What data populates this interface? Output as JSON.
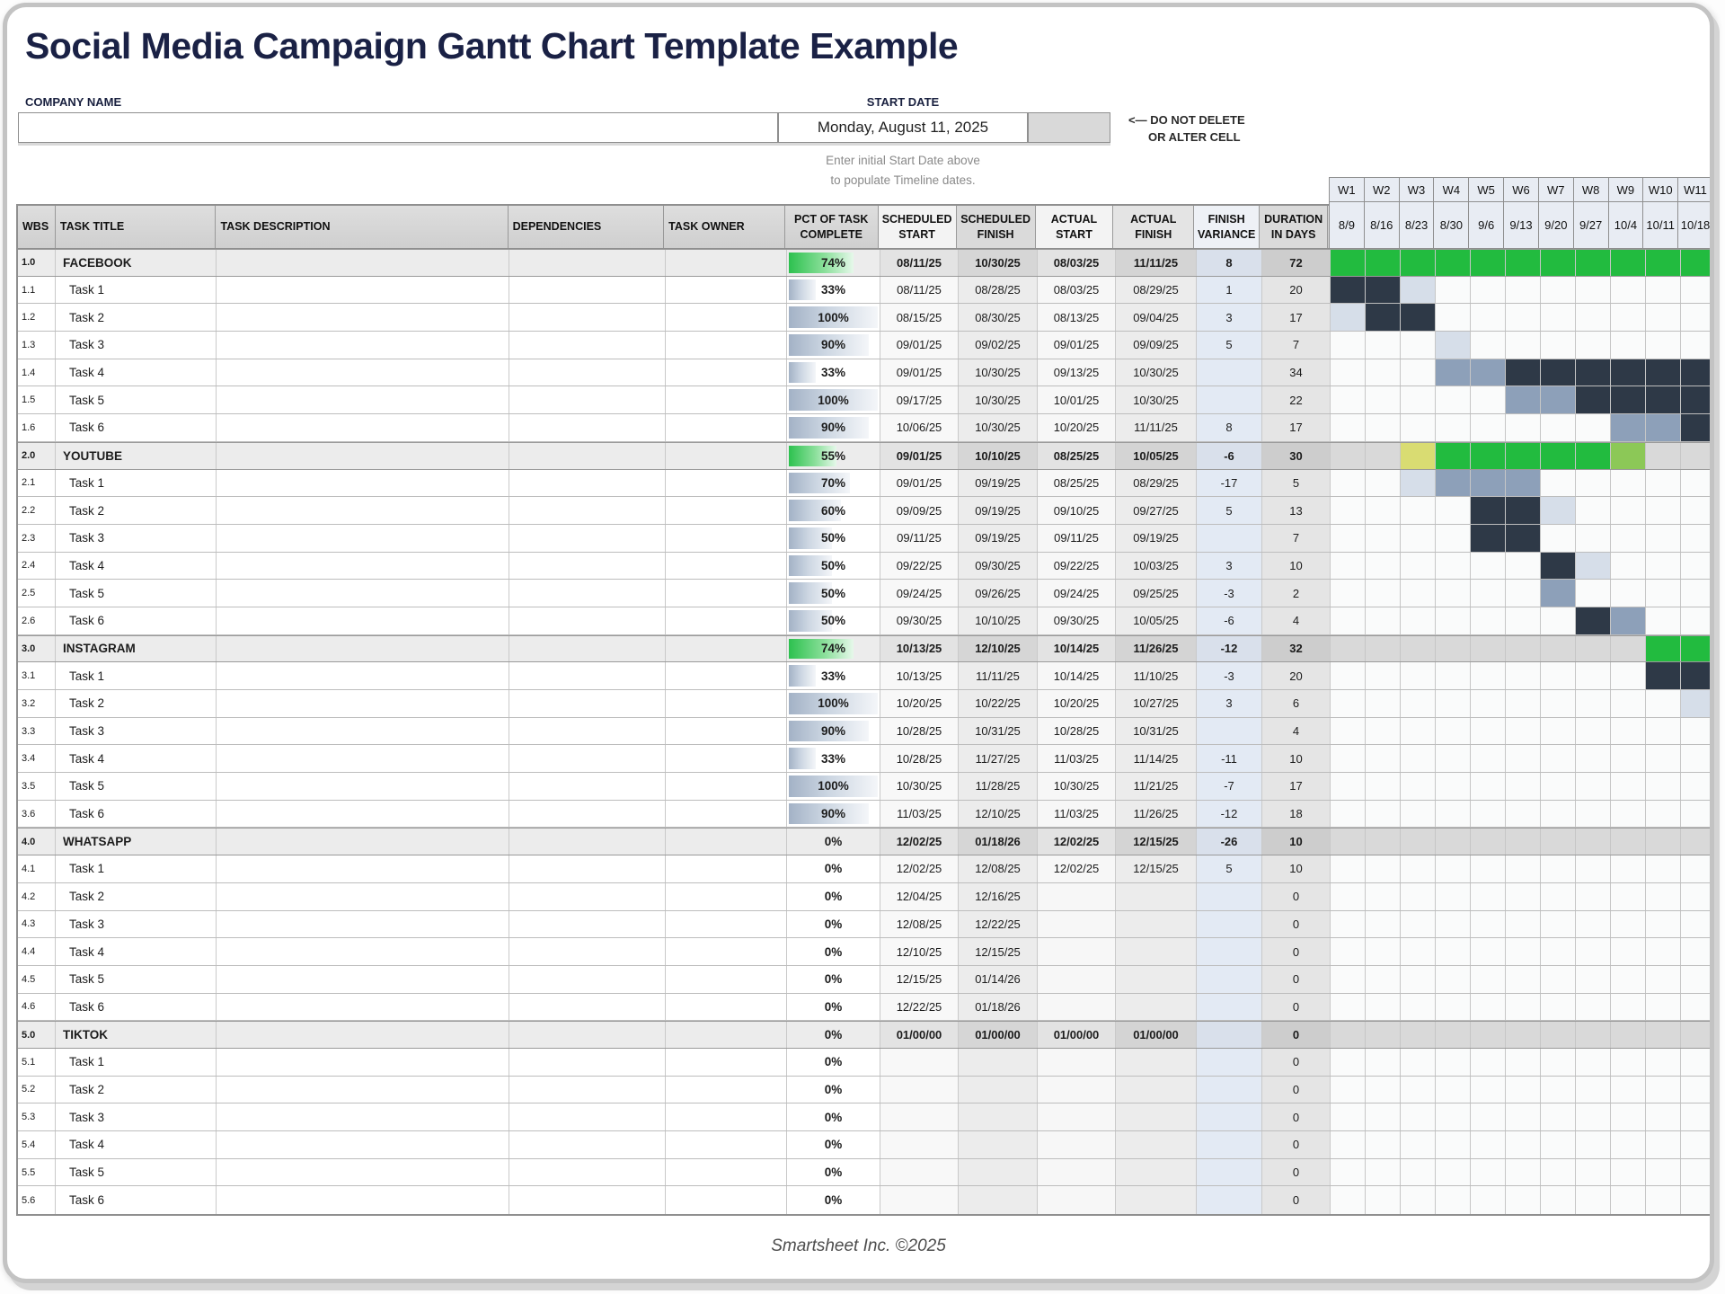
{
  "page_title": "Social Media Campaign Gantt Chart Template Example",
  "form": {
    "company_label": "COMPANY NAME",
    "company_value": "",
    "start_date_label": "START DATE",
    "start_date_value": "Monday, August 11, 2025",
    "warning_line1": "<— DO NOT DELETE",
    "warning_line2": "OR ALTER CELL",
    "note_line1": "Enter initial Start Date above",
    "note_line2": "to populate Timeline dates."
  },
  "footer": {
    "text": "Smartsheet Inc. ©2025"
  },
  "colors": {
    "accent_navy": "#1a2145",
    "gantt_green": "#22bb3f",
    "gantt_light_green": "#8cc857",
    "gantt_yellow": "#d9dc72",
    "gantt_dark_navy": "#2e3947",
    "gantt_medium_slate": "#8da0b9",
    "gantt_pale_blue": "#d6dee9",
    "gantt_section_grey": "#d9d9d9"
  },
  "chart_data": {
    "type": "table",
    "title": "Social Media Campaign Gantt Chart Template Example",
    "columns": [
      "WBS",
      "TASK TITLE",
      "TASK DESCRIPTION",
      "DEPENDENCIES",
      "TASK OWNER",
      "PCT OF TASK COMPLETE",
      "SCHEDULED START",
      "SCHEDULED FINISH",
      "ACTUAL START",
      "ACTUAL FINISH",
      "FINISH VARIANCE",
      "DURATION IN DAYS"
    ],
    "weeks": [
      {
        "label": "W1",
        "date": "8/9"
      },
      {
        "label": "W2",
        "date": "8/16"
      },
      {
        "label": "W3",
        "date": "8/23"
      },
      {
        "label": "W4",
        "date": "8/30"
      },
      {
        "label": "W5",
        "date": "9/6"
      },
      {
        "label": "W6",
        "date": "9/13"
      },
      {
        "label": "W7",
        "date": "9/20"
      },
      {
        "label": "W8",
        "date": "9/27"
      },
      {
        "label": "W9",
        "date": "10/4"
      },
      {
        "label": "W10",
        "date": "10/11"
      },
      {
        "label": "W11",
        "date": "10/18"
      }
    ],
    "gantt_legend": {
      "G": "green bar",
      "LG": "light green bar",
      "Y": "yellow bar",
      "D": "dark navy bar",
      "M": "medium slate bar",
      "P": "pale blue bar",
      "X": "grey section fill",
      "": "empty"
    },
    "rows": [
      {
        "wbs": "1.0",
        "title": "FACEBOOK",
        "section": true,
        "pct": 74,
        "pct_label": "74%",
        "ss": "08/11/25",
        "sf": "10/30/25",
        "as": "08/03/25",
        "af": "11/11/25",
        "fv": "8",
        "dur": "72",
        "gantt": [
          "G",
          "G",
          "G",
          "G",
          "G",
          "G",
          "G",
          "G",
          "G",
          "G",
          "G"
        ]
      },
      {
        "wbs": "1.1",
        "title": "Task 1",
        "section": false,
        "pct": 33,
        "pct_label": "33%",
        "ss": "08/11/25",
        "sf": "08/28/25",
        "as": "08/03/25",
        "af": "08/29/25",
        "fv": "1",
        "dur": "20",
        "gantt": [
          "D",
          "D",
          "P",
          "",
          "",
          "",
          "",
          "",
          "",
          "",
          ""
        ]
      },
      {
        "wbs": "1.2",
        "title": "Task 2",
        "section": false,
        "pct": 100,
        "pct_label": "100%",
        "ss": "08/15/25",
        "sf": "08/30/25",
        "as": "08/13/25",
        "af": "09/04/25",
        "fv": "3",
        "dur": "17",
        "gantt": [
          "P",
          "D",
          "D",
          "",
          "",
          "",
          "",
          "",
          "",
          "",
          ""
        ]
      },
      {
        "wbs": "1.3",
        "title": "Task 3",
        "section": false,
        "pct": 90,
        "pct_label": "90%",
        "ss": "09/01/25",
        "sf": "09/02/25",
        "as": "09/01/25",
        "af": "09/09/25",
        "fv": "5",
        "dur": "7",
        "gantt": [
          "",
          "",
          "",
          "P",
          "",
          "",
          "",
          "",
          "",
          "",
          ""
        ]
      },
      {
        "wbs": "1.4",
        "title": "Task 4",
        "section": false,
        "pct": 33,
        "pct_label": "33%",
        "ss": "09/01/25",
        "sf": "10/30/25",
        "as": "09/13/25",
        "af": "10/30/25",
        "fv": "",
        "dur": "34",
        "gantt": [
          "",
          "",
          "",
          "M",
          "M",
          "D",
          "D",
          "D",
          "D",
          "D",
          "D"
        ]
      },
      {
        "wbs": "1.5",
        "title": "Task 5",
        "section": false,
        "pct": 100,
        "pct_label": "100%",
        "ss": "09/17/25",
        "sf": "10/30/25",
        "as": "10/01/25",
        "af": "10/30/25",
        "fv": "",
        "dur": "22",
        "gantt": [
          "",
          "",
          "",
          "",
          "",
          "M",
          "M",
          "D",
          "D",
          "D",
          "D"
        ]
      },
      {
        "wbs": "1.6",
        "title": "Task 6",
        "section": false,
        "pct": 90,
        "pct_label": "90%",
        "ss": "10/06/25",
        "sf": "10/30/25",
        "as": "10/20/25",
        "af": "11/11/25",
        "fv": "8",
        "dur": "17",
        "gantt": [
          "",
          "",
          "",
          "",
          "",
          "",
          "",
          "",
          "M",
          "M",
          "D"
        ]
      },
      {
        "wbs": "2.0",
        "title": "YOUTUBE",
        "section": true,
        "pct": 55,
        "pct_label": "55%",
        "ss": "09/01/25",
        "sf": "10/10/25",
        "as": "08/25/25",
        "af": "10/05/25",
        "fv": "-6",
        "dur": "30",
        "gantt": [
          "X",
          "X",
          "Y",
          "G",
          "G",
          "G",
          "G",
          "G",
          "LG",
          "X",
          "X"
        ]
      },
      {
        "wbs": "2.1",
        "title": "Task 1",
        "section": false,
        "pct": 70,
        "pct_label": "70%",
        "ss": "09/01/25",
        "sf": "09/19/25",
        "as": "08/25/25",
        "af": "08/29/25",
        "fv": "-17",
        "dur": "5",
        "gantt": [
          "",
          "",
          "P",
          "M",
          "M",
          "M",
          "",
          "",
          "",
          "",
          ""
        ]
      },
      {
        "wbs": "2.2",
        "title": "Task 2",
        "section": false,
        "pct": 60,
        "pct_label": "60%",
        "ss": "09/09/25",
        "sf": "09/19/25",
        "as": "09/10/25",
        "af": "09/27/25",
        "fv": "5",
        "dur": "13",
        "gantt": [
          "",
          "",
          "",
          "",
          "D",
          "D",
          "P",
          "",
          "",
          "",
          ""
        ]
      },
      {
        "wbs": "2.3",
        "title": "Task 3",
        "section": false,
        "pct": 50,
        "pct_label": "50%",
        "ss": "09/11/25",
        "sf": "09/19/25",
        "as": "09/11/25",
        "af": "09/19/25",
        "fv": "",
        "dur": "7",
        "gantt": [
          "",
          "",
          "",
          "",
          "D",
          "D",
          "",
          "",
          "",
          "",
          ""
        ]
      },
      {
        "wbs": "2.4",
        "title": "Task 4",
        "section": false,
        "pct": 50,
        "pct_label": "50%",
        "ss": "09/22/25",
        "sf": "09/30/25",
        "as": "09/22/25",
        "af": "10/03/25",
        "fv": "3",
        "dur": "10",
        "gantt": [
          "",
          "",
          "",
          "",
          "",
          "",
          "D",
          "P",
          "",
          "",
          ""
        ]
      },
      {
        "wbs": "2.5",
        "title": "Task 5",
        "section": false,
        "pct": 50,
        "pct_label": "50%",
        "ss": "09/24/25",
        "sf": "09/26/25",
        "as": "09/24/25",
        "af": "09/25/25",
        "fv": "-3",
        "dur": "2",
        "gantt": [
          "",
          "",
          "",
          "",
          "",
          "",
          "M",
          "",
          "",
          "",
          ""
        ]
      },
      {
        "wbs": "2.6",
        "title": "Task 6",
        "section": false,
        "pct": 50,
        "pct_label": "50%",
        "ss": "09/30/25",
        "sf": "10/10/25",
        "as": "09/30/25",
        "af": "10/05/25",
        "fv": "-6",
        "dur": "4",
        "gantt": [
          "",
          "",
          "",
          "",
          "",
          "",
          "",
          "D",
          "M",
          "",
          ""
        ]
      },
      {
        "wbs": "3.0",
        "title": "INSTAGRAM",
        "section": true,
        "pct": 74,
        "pct_label": "74%",
        "ss": "10/13/25",
        "sf": "12/10/25",
        "as": "10/14/25",
        "af": "11/26/25",
        "fv": "-12",
        "dur": "32",
        "gantt": [
          "X",
          "X",
          "X",
          "X",
          "X",
          "X",
          "X",
          "X",
          "X",
          "G",
          "G"
        ]
      },
      {
        "wbs": "3.1",
        "title": "Task 1",
        "section": false,
        "pct": 33,
        "pct_label": "33%",
        "ss": "10/13/25",
        "sf": "11/11/25",
        "as": "10/14/25",
        "af": "11/10/25",
        "fv": "-3",
        "dur": "20",
        "gantt": [
          "",
          "",
          "",
          "",
          "",
          "",
          "",
          "",
          "",
          "D",
          "D"
        ]
      },
      {
        "wbs": "3.2",
        "title": "Task 2",
        "section": false,
        "pct": 100,
        "pct_label": "100%",
        "ss": "10/20/25",
        "sf": "10/22/25",
        "as": "10/20/25",
        "af": "10/27/25",
        "fv": "3",
        "dur": "6",
        "gantt": [
          "",
          "",
          "",
          "",
          "",
          "",
          "",
          "",
          "",
          "",
          "P"
        ]
      },
      {
        "wbs": "3.3",
        "title": "Task 3",
        "section": false,
        "pct": 90,
        "pct_label": "90%",
        "ss": "10/28/25",
        "sf": "10/31/25",
        "as": "10/28/25",
        "af": "10/31/25",
        "fv": "",
        "dur": "4",
        "gantt": [
          "",
          "",
          "",
          "",
          "",
          "",
          "",
          "",
          "",
          "",
          ""
        ]
      },
      {
        "wbs": "3.4",
        "title": "Task 4",
        "section": false,
        "pct": 33,
        "pct_label": "33%",
        "ss": "10/28/25",
        "sf": "11/27/25",
        "as": "11/03/25",
        "af": "11/14/25",
        "fv": "-11",
        "dur": "10",
        "gantt": [
          "",
          "",
          "",
          "",
          "",
          "",
          "",
          "",
          "",
          "",
          ""
        ]
      },
      {
        "wbs": "3.5",
        "title": "Task 5",
        "section": false,
        "pct": 100,
        "pct_label": "100%",
        "ss": "10/30/25",
        "sf": "11/28/25",
        "as": "10/30/25",
        "af": "11/21/25",
        "fv": "-7",
        "dur": "17",
        "gantt": [
          "",
          "",
          "",
          "",
          "",
          "",
          "",
          "",
          "",
          "",
          ""
        ]
      },
      {
        "wbs": "3.6",
        "title": "Task 6",
        "section": false,
        "pct": 90,
        "pct_label": "90%",
        "ss": "11/03/25",
        "sf": "12/10/25",
        "as": "11/03/25",
        "af": "11/26/25",
        "fv": "-12",
        "dur": "18",
        "gantt": [
          "",
          "",
          "",
          "",
          "",
          "",
          "",
          "",
          "",
          "",
          ""
        ]
      },
      {
        "wbs": "4.0",
        "title": "WHATSAPP",
        "section": true,
        "pct": 0,
        "pct_label": "0%",
        "ss": "12/02/25",
        "sf": "01/18/26",
        "as": "12/02/25",
        "af": "12/15/25",
        "fv": "-26",
        "dur": "10",
        "gantt": [
          "X",
          "X",
          "X",
          "X",
          "X",
          "X",
          "X",
          "X",
          "X",
          "X",
          "X"
        ]
      },
      {
        "wbs": "4.1",
        "title": "Task 1",
        "section": false,
        "pct": 0,
        "pct_label": "0%",
        "ss": "12/02/25",
        "sf": "12/08/25",
        "as": "12/02/25",
        "af": "12/15/25",
        "fv": "5",
        "dur": "10",
        "gantt": [
          "",
          "",
          "",
          "",
          "",
          "",
          "",
          "",
          "",
          "",
          ""
        ]
      },
      {
        "wbs": "4.2",
        "title": "Task 2",
        "section": false,
        "pct": 0,
        "pct_label": "0%",
        "ss": "12/04/25",
        "sf": "12/16/25",
        "as": "",
        "af": "",
        "fv": "",
        "dur": "0",
        "gantt": [
          "",
          "",
          "",
          "",
          "",
          "",
          "",
          "",
          "",
          "",
          ""
        ]
      },
      {
        "wbs": "4.3",
        "title": "Task 3",
        "section": false,
        "pct": 0,
        "pct_label": "0%",
        "ss": "12/08/25",
        "sf": "12/22/25",
        "as": "",
        "af": "",
        "fv": "",
        "dur": "0",
        "gantt": [
          "",
          "",
          "",
          "",
          "",
          "",
          "",
          "",
          "",
          "",
          ""
        ]
      },
      {
        "wbs": "4.4",
        "title": "Task 4",
        "section": false,
        "pct": 0,
        "pct_label": "0%",
        "ss": "12/10/25",
        "sf": "12/15/25",
        "as": "",
        "af": "",
        "fv": "",
        "dur": "0",
        "gantt": [
          "",
          "",
          "",
          "",
          "",
          "",
          "",
          "",
          "",
          "",
          ""
        ]
      },
      {
        "wbs": "4.5",
        "title": "Task 5",
        "section": false,
        "pct": 0,
        "pct_label": "0%",
        "ss": "12/15/25",
        "sf": "01/14/26",
        "as": "",
        "af": "",
        "fv": "",
        "dur": "0",
        "gantt": [
          "",
          "",
          "",
          "",
          "",
          "",
          "",
          "",
          "",
          "",
          ""
        ]
      },
      {
        "wbs": "4.6",
        "title": "Task 6",
        "section": false,
        "pct": 0,
        "pct_label": "0%",
        "ss": "12/22/25",
        "sf": "01/18/26",
        "as": "",
        "af": "",
        "fv": "",
        "dur": "0",
        "gantt": [
          "",
          "",
          "",
          "",
          "",
          "",
          "",
          "",
          "",
          "",
          ""
        ]
      },
      {
        "wbs": "5.0",
        "title": "TIKTOK",
        "section": true,
        "pct": 0,
        "pct_label": "0%",
        "ss": "01/00/00",
        "sf": "01/00/00",
        "as": "01/00/00",
        "af": "01/00/00",
        "fv": "",
        "dur": "0",
        "gantt": [
          "X",
          "X",
          "X",
          "X",
          "X",
          "X",
          "X",
          "X",
          "X",
          "X",
          "X"
        ]
      },
      {
        "wbs": "5.1",
        "title": "Task 1",
        "section": false,
        "pct": 0,
        "pct_label": "0%",
        "ss": "",
        "sf": "",
        "as": "",
        "af": "",
        "fv": "",
        "dur": "0",
        "gantt": [
          "",
          "",
          "",
          "",
          "",
          "",
          "",
          "",
          "",
          "",
          ""
        ]
      },
      {
        "wbs": "5.2",
        "title": "Task 2",
        "section": false,
        "pct": 0,
        "pct_label": "0%",
        "ss": "",
        "sf": "",
        "as": "",
        "af": "",
        "fv": "",
        "dur": "0",
        "gantt": [
          "",
          "",
          "",
          "",
          "",
          "",
          "",
          "",
          "",
          "",
          ""
        ]
      },
      {
        "wbs": "5.3",
        "title": "Task 3",
        "section": false,
        "pct": 0,
        "pct_label": "0%",
        "ss": "",
        "sf": "",
        "as": "",
        "af": "",
        "fv": "",
        "dur": "0",
        "gantt": [
          "",
          "",
          "",
          "",
          "",
          "",
          "",
          "",
          "",
          "",
          ""
        ]
      },
      {
        "wbs": "5.4",
        "title": "Task 4",
        "section": false,
        "pct": 0,
        "pct_label": "0%",
        "ss": "",
        "sf": "",
        "as": "",
        "af": "",
        "fv": "",
        "dur": "0",
        "gantt": [
          "",
          "",
          "",
          "",
          "",
          "",
          "",
          "",
          "",
          "",
          ""
        ]
      },
      {
        "wbs": "5.5",
        "title": "Task 5",
        "section": false,
        "pct": 0,
        "pct_label": "0%",
        "ss": "",
        "sf": "",
        "as": "",
        "af": "",
        "fv": "",
        "dur": "0",
        "gantt": [
          "",
          "",
          "",
          "",
          "",
          "",
          "",
          "",
          "",
          "",
          ""
        ]
      },
      {
        "wbs": "5.6",
        "title": "Task 6",
        "section": false,
        "pct": 0,
        "pct_label": "0%",
        "ss": "",
        "sf": "",
        "as": "",
        "af": "",
        "fv": "",
        "dur": "0",
        "gantt": [
          "",
          "",
          "",
          "",
          "",
          "",
          "",
          "",
          "",
          "",
          ""
        ]
      }
    ]
  }
}
